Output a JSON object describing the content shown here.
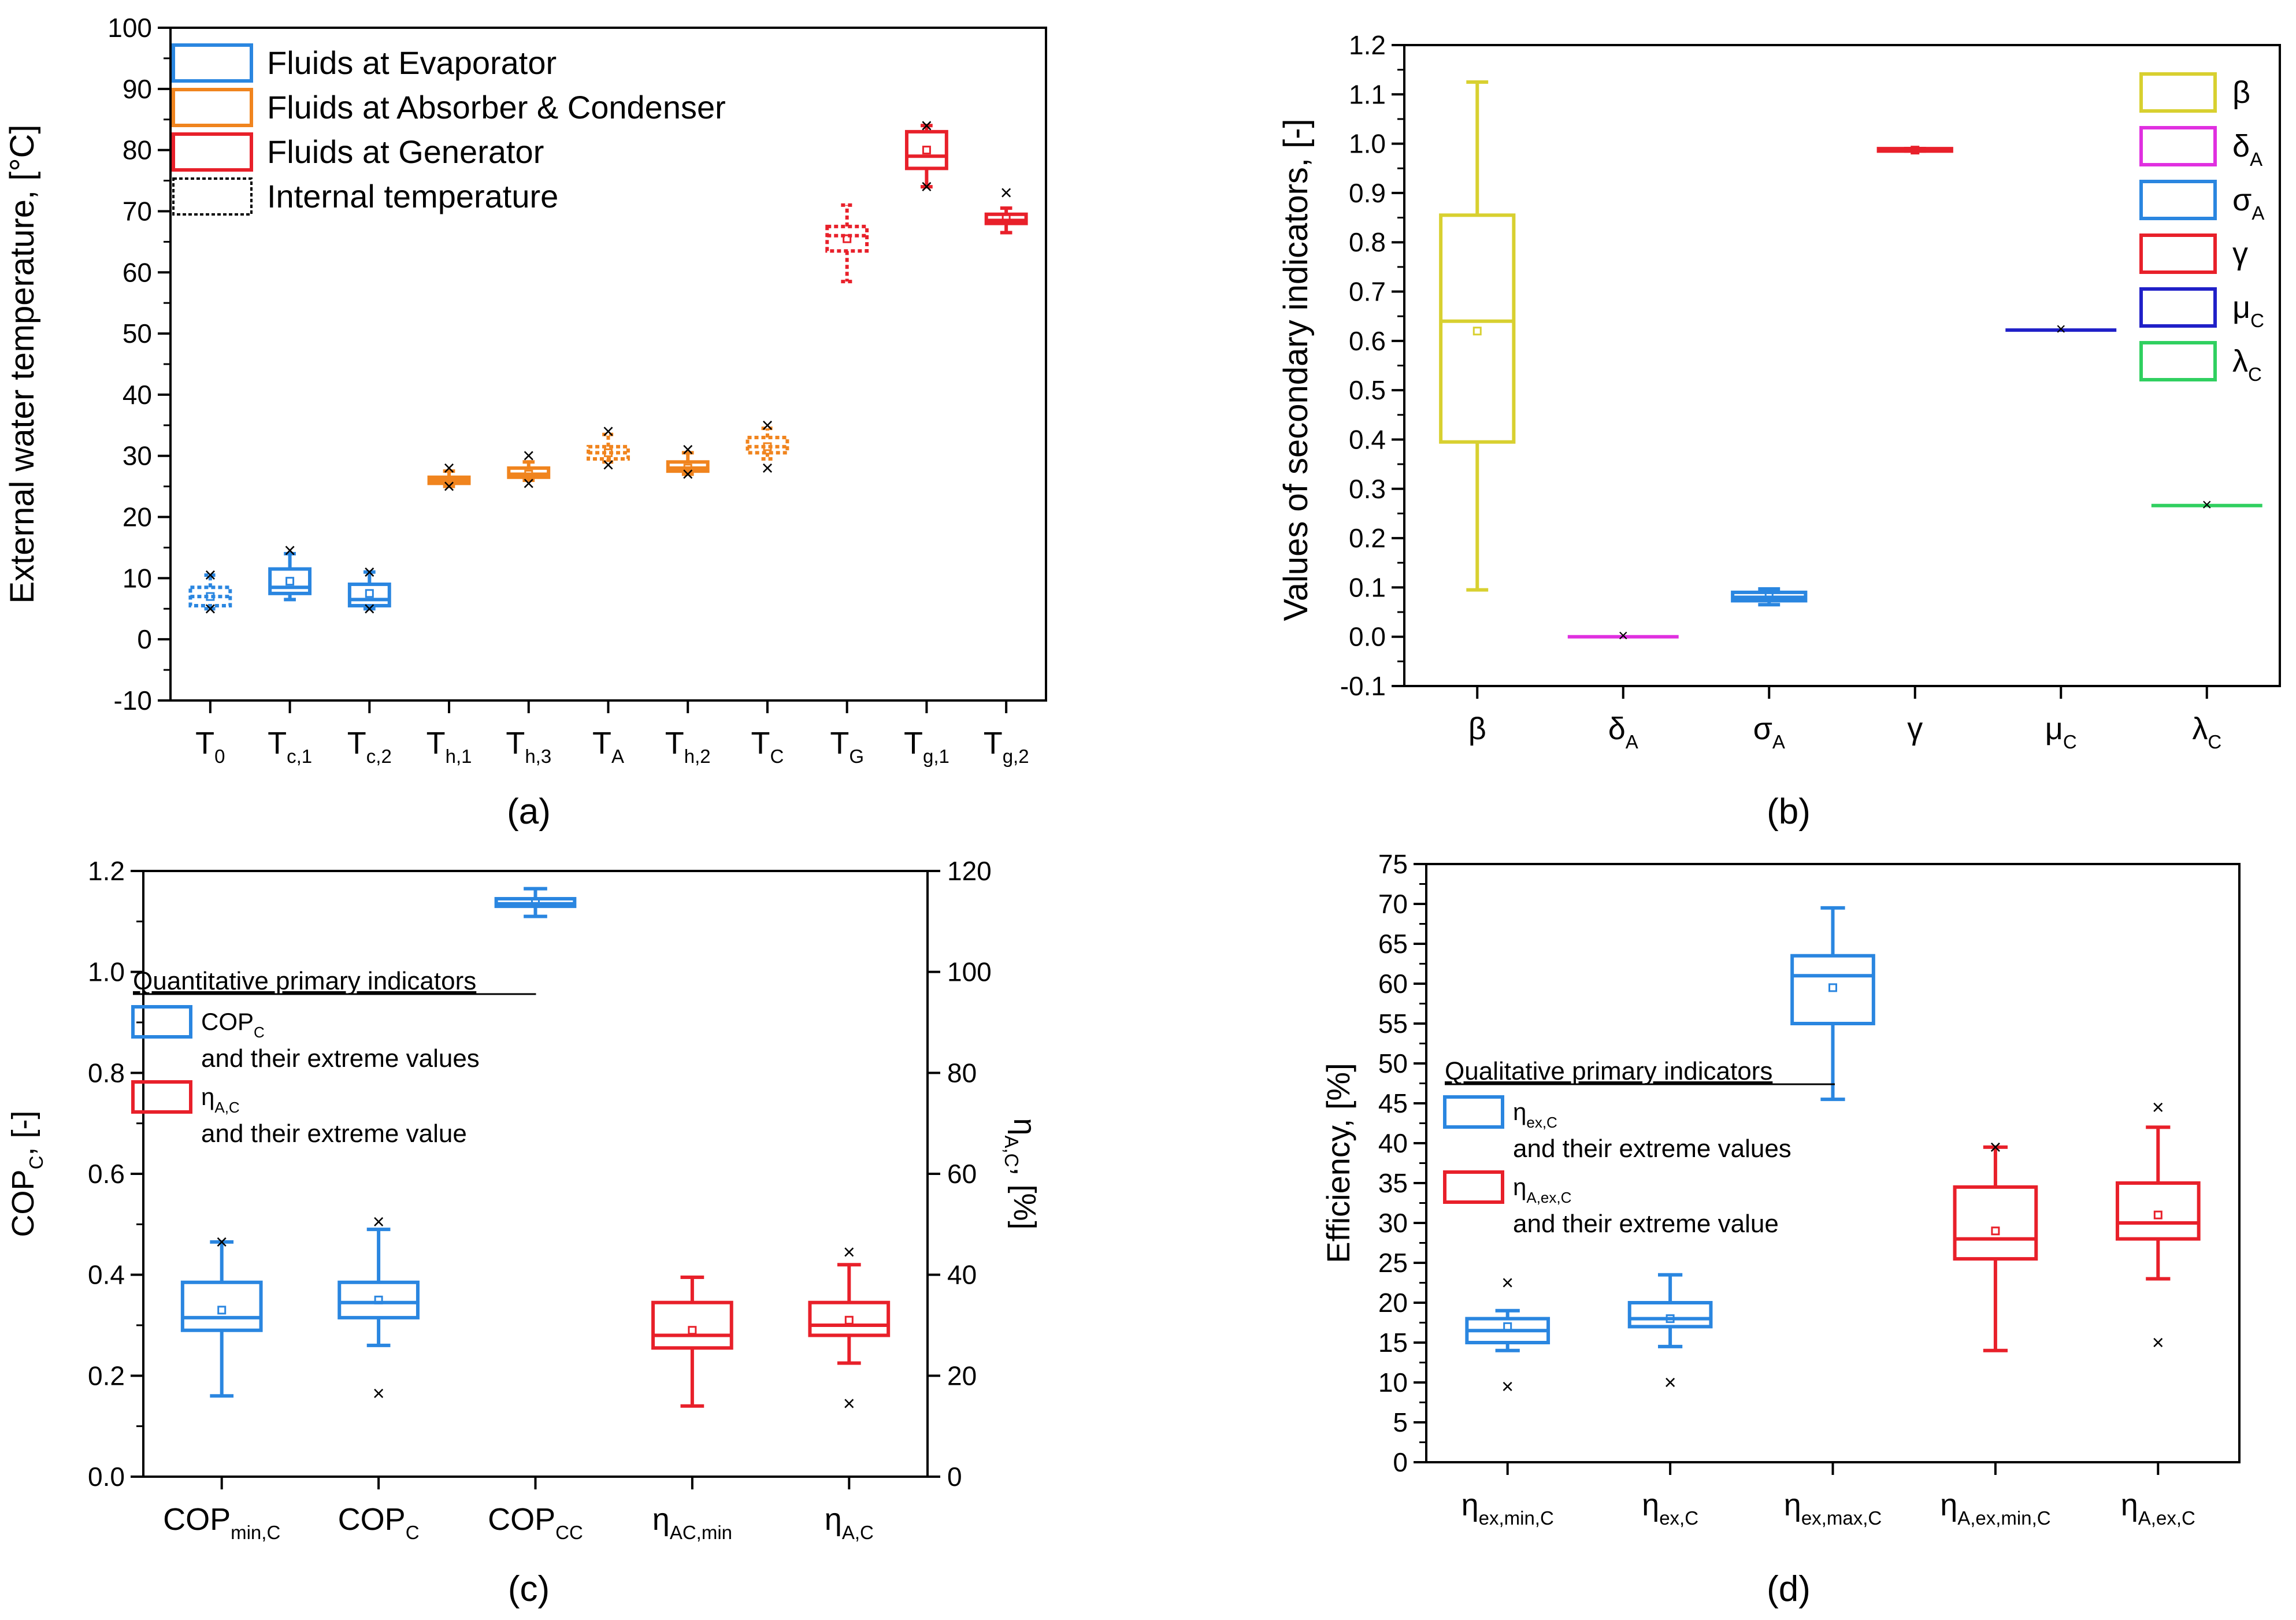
{
  "figure": {
    "panels": [
      "(a)",
      "(b)",
      "(c)",
      "(d)"
    ]
  },
  "colors": {
    "blue": "#2a86e0",
    "orange": "#f0841e",
    "red": "#e8202a",
    "yellow": "#d8d030",
    "magenta": "#e030e0",
    "darkblue": "#2020c8",
    "green": "#30d060"
  },
  "chart_data": [
    {
      "id": "a",
      "type": "box",
      "label": "(a)",
      "ylabel": "External water temperature, [°C]",
      "ylim": [
        -10,
        100
      ],
      "yticks": [
        -10,
        0,
        10,
        20,
        30,
        40,
        50,
        60,
        70,
        80,
        90,
        100
      ],
      "categories": [
        {
          "main": "T",
          "sub": "0"
        },
        {
          "main": "T",
          "sub": "c,1"
        },
        {
          "main": "T",
          "sub": "c,2"
        },
        {
          "main": "T",
          "sub": "h,1"
        },
        {
          "main": "T",
          "sub": "h,3"
        },
        {
          "main": "T",
          "sub": "A"
        },
        {
          "main": "T",
          "sub": "h,2"
        },
        {
          "main": "T",
          "sub": "C"
        },
        {
          "main": "T",
          "sub": "G"
        },
        {
          "main": "T",
          "sub": "g,1"
        },
        {
          "main": "T",
          "sub": "g,2"
        }
      ],
      "legend": [
        {
          "text": "Fluids at Evaporator",
          "color": "blue",
          "style": "solid"
        },
        {
          "text": "Fluids at Absorber & Condenser",
          "color": "orange",
          "style": "solid"
        },
        {
          "text": "Fluids at Generator",
          "color": "red",
          "style": "solid"
        },
        {
          "text": "Internal temperature",
          "color": "black",
          "style": "dotted"
        }
      ],
      "boxes": [
        {
          "color": "blue",
          "style": "dotted",
          "wlo": 5,
          "q1": 5.5,
          "med": 7,
          "q3": 8.5,
          "whi": 10.5,
          "mean": 7,
          "out": [
            5,
            10.5
          ]
        },
        {
          "color": "blue",
          "style": "solid",
          "wlo": 6.5,
          "q1": 7.5,
          "med": 8.5,
          "q3": 11.5,
          "whi": 14,
          "mean": 9.5,
          "out": [
            14.5
          ]
        },
        {
          "color": "blue",
          "style": "solid",
          "wlo": 5,
          "q1": 5.5,
          "med": 6.5,
          "q3": 9,
          "whi": 11,
          "mean": 7.5,
          "out": [
            5,
            11
          ]
        },
        {
          "color": "orange",
          "style": "solid",
          "wlo": 25,
          "q1": 25.5,
          "med": 26,
          "q3": 26.5,
          "whi": 27.5,
          "mean": 26,
          "out": [
            28,
            25
          ]
        },
        {
          "color": "orange",
          "style": "solid",
          "wlo": 26,
          "q1": 26.5,
          "med": 27,
          "q3": 28,
          "whi": 29,
          "mean": 27,
          "out": [
            30,
            25.5
          ]
        },
        {
          "color": "orange",
          "style": "dotted",
          "wlo": 29,
          "q1": 29.5,
          "med": 30.5,
          "q3": 31.5,
          "whi": 33.5,
          "mean": 30.5,
          "out": [
            34,
            28.5
          ]
        },
        {
          "color": "orange",
          "style": "solid",
          "wlo": 27,
          "q1": 27.5,
          "med": 28,
          "q3": 29,
          "whi": 30.5,
          "mean": 28,
          "out": [
            31,
            27
          ]
        },
        {
          "color": "orange",
          "style": "dotted",
          "wlo": 29.5,
          "q1": 30.5,
          "med": 31.5,
          "q3": 33,
          "whi": 34.5,
          "mean": 31.5,
          "out": [
            35,
            28
          ]
        },
        {
          "color": "red",
          "style": "dotted",
          "wlo": 58.5,
          "q1": 63.5,
          "med": 66,
          "q3": 67.5,
          "whi": 71,
          "mean": 65.5,
          "out": []
        },
        {
          "color": "red",
          "style": "solid",
          "wlo": 74,
          "q1": 77,
          "med": 79,
          "q3": 83,
          "whi": 84,
          "mean": 80,
          "out": [
            84,
            74
          ]
        },
        {
          "color": "red",
          "style": "solid",
          "wlo": 66.5,
          "q1": 68,
          "med": 68.5,
          "q3": 69.5,
          "whi": 70.5,
          "mean": 69,
          "out": [
            73
          ]
        }
      ]
    },
    {
      "id": "b",
      "type": "box",
      "label": "(b)",
      "ylabel": "Values of secondary indicators, [-]",
      "ylim": [
        -0.1,
        1.2
      ],
      "yticks": [
        -0.1,
        0.0,
        0.1,
        0.2,
        0.3,
        0.4,
        0.5,
        0.6,
        0.7,
        0.8,
        0.9,
        1.0,
        1.1,
        1.2
      ],
      "ytick_labels": [
        "-0.1",
        "0.0",
        "0.1",
        "0.2",
        "0.3",
        "0.4",
        "0.5",
        "0.6",
        "0.7",
        "0.8",
        "0.9",
        "1.0",
        "1.1",
        "1.2"
      ],
      "categories": [
        {
          "main": "β",
          "sub": ""
        },
        {
          "main": "δ",
          "sub": "A"
        },
        {
          "main": "σ",
          "sub": "A"
        },
        {
          "main": "γ",
          "sub": ""
        },
        {
          "main": "μ",
          "sub": "C"
        },
        {
          "main": "λ",
          "sub": "C"
        }
      ],
      "legend": [
        {
          "main": "β",
          "sub": "",
          "color": "yellow"
        },
        {
          "main": "δ",
          "sub": "A",
          "color": "magenta"
        },
        {
          "main": "σ",
          "sub": "A",
          "color": "blue"
        },
        {
          "main": "γ",
          "sub": "",
          "color": "red"
        },
        {
          "main": "μ",
          "sub": "C",
          "color": "darkblue"
        },
        {
          "main": "λ",
          "sub": "C",
          "color": "green"
        }
      ],
      "boxes": [
        {
          "color": "yellow",
          "style": "solid",
          "wlo": 0.095,
          "q1": 0.395,
          "med": 0.64,
          "q3": 0.855,
          "whi": 1.125,
          "mean": 0.62,
          "out": []
        },
        {
          "color": "magenta",
          "style": "solid",
          "wlo": 0.0,
          "q1": 0.0,
          "med": 0.0,
          "q3": 0.0,
          "whi": 0.0,
          "mean": 0.0,
          "out": []
        },
        {
          "color": "blue",
          "style": "solid",
          "wlo": 0.065,
          "q1": 0.073,
          "med": 0.08,
          "q3": 0.09,
          "whi": 0.097,
          "mean": 0.082,
          "out": []
        },
        {
          "color": "red",
          "style": "solid",
          "wlo": 0.985,
          "q1": 0.985,
          "med": 0.987,
          "q3": 0.99,
          "whi": 0.99,
          "mean": 0.987,
          "out": []
        },
        {
          "color": "darkblue",
          "style": "solid",
          "wlo": 0.622,
          "q1": 0.622,
          "med": 0.622,
          "q3": 0.622,
          "whi": 0.622,
          "mean": 0.622,
          "out": []
        },
        {
          "color": "green",
          "style": "solid",
          "wlo": 0.266,
          "q1": 0.266,
          "med": 0.266,
          "q3": 0.266,
          "whi": 0.266,
          "mean": 0.266,
          "out": []
        }
      ]
    },
    {
      "id": "c",
      "type": "box",
      "label": "(c)",
      "ylabel_main": "COP",
      "ylabel_sub": "C",
      "ylabel_rest": ", [-]",
      "y2label_main": "η",
      "y2label_sub": "A,C",
      "y2label_rest": ", [%]",
      "ylim": [
        0,
        1.2
      ],
      "yticks": [
        0.0,
        0.2,
        0.4,
        0.6,
        0.8,
        1.0,
        1.2
      ],
      "ytick_labels": [
        "0.0",
        "0.2",
        "0.4",
        "0.6",
        "0.8",
        "1.0",
        "1.2"
      ],
      "y2lim": [
        0,
        120
      ],
      "y2ticks": [
        0,
        20,
        40,
        60,
        80,
        100,
        120
      ],
      "categories": [
        {
          "main": "COP",
          "sub": "min,C"
        },
        {
          "main": "COP",
          "sub": "C"
        },
        {
          "main": "COP",
          "sub": "CC"
        },
        {
          "main": "η",
          "sub": "AC,min"
        },
        {
          "main": "η",
          "sub": "A,C"
        }
      ],
      "legend_title": "Quantitative primary indicators",
      "legend": [
        {
          "main": "COP",
          "sub": "C",
          "note": "and their extreme values",
          "color": "blue"
        },
        {
          "main": "η",
          "sub": "A,C",
          "note": "and their extreme value",
          "color": "red"
        }
      ],
      "boxes": [
        {
          "color": "blue",
          "style": "solid",
          "wlo": 0.16,
          "q1": 0.29,
          "med": 0.315,
          "q3": 0.385,
          "whi": 0.465,
          "mean": 0.33,
          "out": [
            0.465
          ]
        },
        {
          "color": "blue",
          "style": "solid",
          "wlo": 0.26,
          "q1": 0.315,
          "med": 0.345,
          "q3": 0.385,
          "whi": 0.49,
          "mean": 0.35,
          "out": [
            0.505,
            0.165
          ]
        },
        {
          "color": "blue",
          "style": "solid",
          "wlo": 1.11,
          "q1": 1.13,
          "med": 1.135,
          "q3": 1.145,
          "whi": 1.165,
          "mean": 1.137,
          "out": []
        },
        {
          "color": "red",
          "style": "solid",
          "wlo": 0.14,
          "q1": 0.255,
          "med": 0.28,
          "q3": 0.345,
          "whi": 0.395,
          "mean": 0.29,
          "out": []
        },
        {
          "color": "red",
          "style": "solid",
          "wlo": 0.225,
          "q1": 0.28,
          "med": 0.3,
          "q3": 0.345,
          "whi": 0.42,
          "mean": 0.31,
          "out": [
            0.445,
            0.145
          ]
        }
      ]
    },
    {
      "id": "d",
      "type": "box",
      "label": "(d)",
      "ylabel": "Efficiency, [%]",
      "ylim": [
        0,
        75
      ],
      "yticks": [
        0,
        5,
        10,
        15,
        20,
        25,
        30,
        35,
        40,
        45,
        50,
        55,
        60,
        65,
        70,
        75
      ],
      "categories": [
        {
          "main": "η",
          "sub": "ex,min,C"
        },
        {
          "main": "η",
          "sub": "ex,C"
        },
        {
          "main": "η",
          "sub": "ex,max,C"
        },
        {
          "main": "η",
          "sub": "A,ex,min,C"
        },
        {
          "main": "η",
          "sub": "A,ex,C"
        }
      ],
      "legend_title": "Qualitative primary indicators",
      "legend": [
        {
          "main": "η",
          "sub": "ex,C",
          "note": "and their extreme values",
          "color": "blue"
        },
        {
          "main": "η",
          "sub": "A,ex,C",
          "note": "and their extreme value",
          "color": "red"
        }
      ],
      "boxes": [
        {
          "color": "blue",
          "style": "solid",
          "wlo": 14,
          "q1": 15,
          "med": 16.5,
          "q3": 18,
          "whi": 19,
          "mean": 17,
          "out": [
            22.5,
            9.5
          ]
        },
        {
          "color": "blue",
          "style": "solid",
          "wlo": 14.5,
          "q1": 17,
          "med": 18,
          "q3": 20,
          "whi": 23.5,
          "mean": 18,
          "out": [
            10
          ]
        },
        {
          "color": "blue",
          "style": "solid",
          "wlo": 45.5,
          "q1": 55,
          "med": 61,
          "q3": 63.5,
          "whi": 69.5,
          "mean": 59.5,
          "out": []
        },
        {
          "color": "red",
          "style": "solid",
          "wlo": 14,
          "q1": 25.5,
          "med": 28,
          "q3": 34.5,
          "whi": 39.5,
          "mean": 29,
          "out": [
            39.5
          ]
        },
        {
          "color": "red",
          "style": "solid",
          "wlo": 23,
          "q1": 28,
          "med": 30,
          "q3": 35,
          "whi": 42,
          "mean": 31,
          "out": [
            44.5,
            15
          ]
        }
      ]
    }
  ]
}
